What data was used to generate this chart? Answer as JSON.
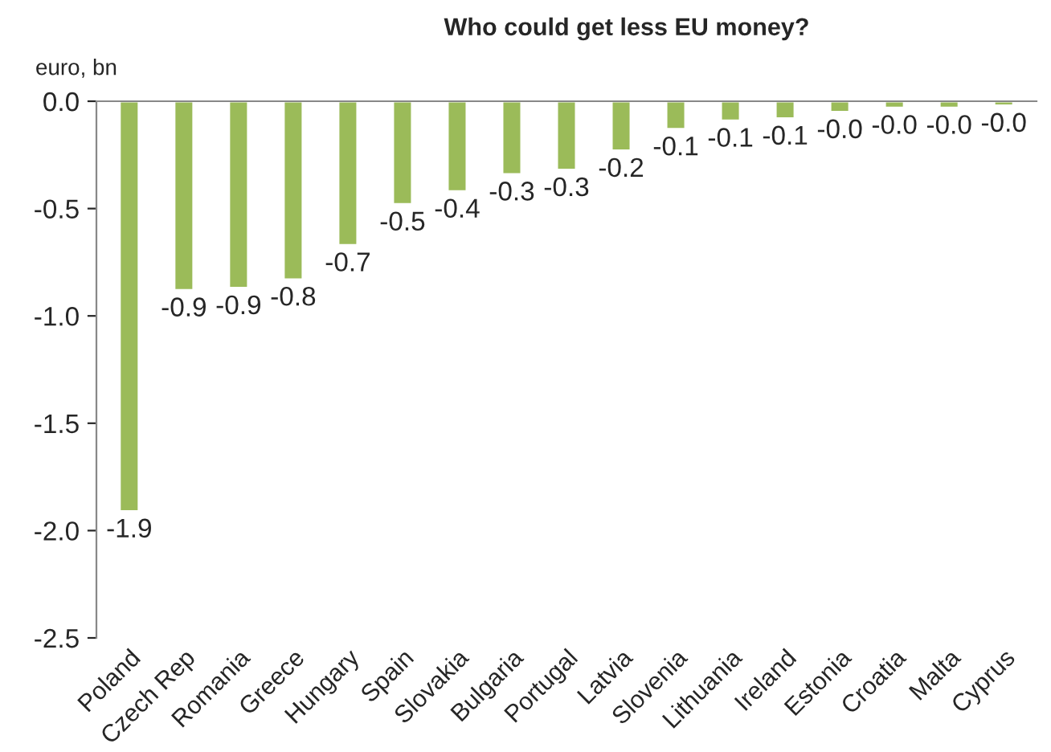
{
  "chart_data": {
    "type": "bar",
    "title": "Who could get less EU money?",
    "ylabel": "euro, bn",
    "categories": [
      "Poland",
      "Czech Rep",
      "Romania",
      "Greece",
      "Hungary",
      "Spain",
      "Slovakia",
      "Bulgaria",
      "Portugal",
      "Latvia",
      "Slovenia",
      "Lithuania",
      "Ireland",
      "Estonia",
      "Croatia",
      "Malta",
      "Cyprus"
    ],
    "values": [
      -1.91,
      -0.88,
      -0.87,
      -0.83,
      -0.67,
      -0.48,
      -0.42,
      -0.34,
      -0.32,
      -0.23,
      -0.13,
      -0.09,
      -0.08,
      -0.05,
      -0.03,
      -0.03,
      -0.02
    ],
    "value_labels": [
      "-1.9",
      "-0.9",
      "-0.9",
      "-0.8",
      "-0.7",
      "-0.5",
      "-0.4",
      "-0.3",
      "-0.3",
      "-0.2",
      "-0.1",
      "-0.1",
      "-0.1",
      "-0.0",
      "-0.0",
      "-0.0",
      "-0.0"
    ],
    "color": "#9bbb59",
    "ylim": [
      -2.5,
      0
    ],
    "yticks": [
      {
        "value": -2.5,
        "label": "-2.5"
      },
      {
        "value": -2.0,
        "label": "-2.0"
      },
      {
        "value": -1.5,
        "label": "-1.5"
      },
      {
        "value": -1.0,
        "label": "-1.0"
      },
      {
        "value": -0.5,
        "label": "-0.5"
      },
      {
        "value": 0,
        "label": "0.0"
      }
    ],
    "grid": false,
    "legend": false
  }
}
